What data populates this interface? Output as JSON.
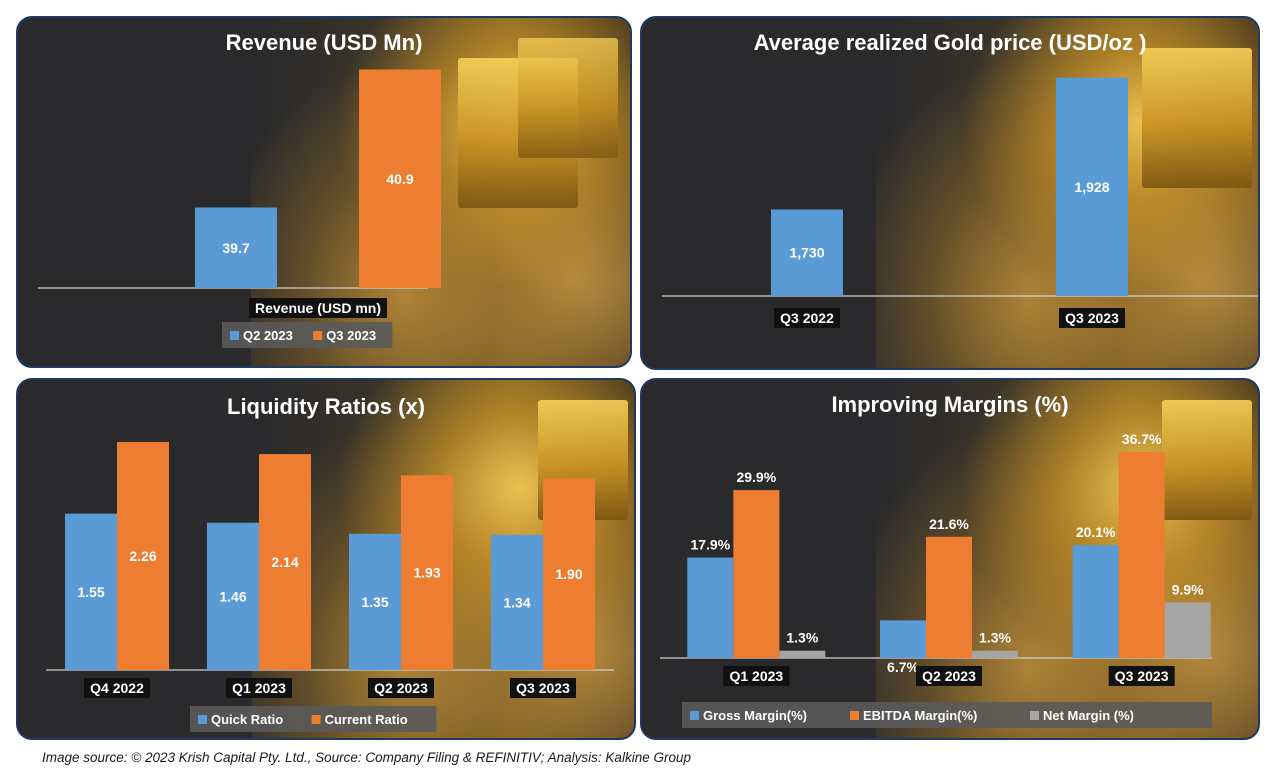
{
  "colors": {
    "blue": "#5b9bd5",
    "orange": "#ed7d31",
    "gray": "#a5a5a5"
  },
  "footer": "Image source: © 2023 Krish Capital Pty. Ltd., Source: Company Filing & REFINITIV; Analysis: Kalkine Group",
  "chart_data": [
    {
      "id": "revenue",
      "type": "bar",
      "title": "Revenue (USD Mn)",
      "categories": [
        "Revenue (USD mn)"
      ],
      "series": [
        {
          "name": "Q2 2023",
          "values": [
            39.7
          ],
          "labels": [
            "39.7"
          ],
          "color": "#5b9bd5"
        },
        {
          "name": "Q3 2023",
          "values": [
            40.9
          ],
          "labels": [
            "40.9"
          ],
          "color": "#ed7d31"
        }
      ],
      "ylim": [
        39.0,
        41.0
      ],
      "legend": "bottom"
    },
    {
      "id": "gold",
      "type": "bar",
      "title": "Average realized Gold price (USD/oz )",
      "categories": [
        "Q3 2022",
        "Q3 2023"
      ],
      "series": [
        {
          "name": "Gold price",
          "values": [
            1730,
            1928
          ],
          "labels": [
            "1,730",
            "1,928"
          ],
          "color": "#5b9bd5"
        }
      ],
      "ylim": [
        1600,
        1950
      ],
      "legend": "none"
    },
    {
      "id": "liquidity",
      "type": "bar",
      "title": "Liquidity Ratios (x)",
      "categories": [
        "Q4 2022",
        "Q1 2023",
        "Q2 2023",
        "Q3 2023"
      ],
      "series": [
        {
          "name": "Quick Ratio",
          "values": [
            1.55,
            1.46,
            1.35,
            1.34
          ],
          "labels": [
            "1.55",
            "1.46",
            "1.35",
            "1.34"
          ],
          "color": "#5b9bd5"
        },
        {
          "name": "Current Ratio",
          "values": [
            2.26,
            2.14,
            1.93,
            1.9
          ],
          "labels": [
            "2.26",
            "2.14",
            "1.93",
            "1.90"
          ],
          "color": "#ed7d31"
        }
      ],
      "ylim": [
        0,
        2.26
      ],
      "legend": "bottom"
    },
    {
      "id": "margins",
      "type": "bar",
      "title": "Improving Margins (%)",
      "categories": [
        "Q1 2023",
        "Q2 2023",
        "Q3 2023"
      ],
      "series": [
        {
          "name": "Gross Margin(%)",
          "values": [
            17.9,
            6.7,
            20.1
          ],
          "labels": [
            "17.9%",
            "6.7%",
            "20.1%"
          ],
          "color": "#5b9bd5"
        },
        {
          "name": "EBITDA Margin(%)",
          "values": [
            29.9,
            21.6,
            36.7
          ],
          "labels": [
            "29.9%",
            "21.6%",
            "36.7%"
          ],
          "color": "#ed7d31"
        },
        {
          "name": "Net Margin (%)",
          "values": [
            1.3,
            1.3,
            9.9
          ],
          "labels": [
            "1.3%",
            "1.3%",
            "9.9%"
          ],
          "color": "#a5a5a5"
        }
      ],
      "ylim": [
        0,
        36.7
      ],
      "legend": "bottom"
    }
  ]
}
